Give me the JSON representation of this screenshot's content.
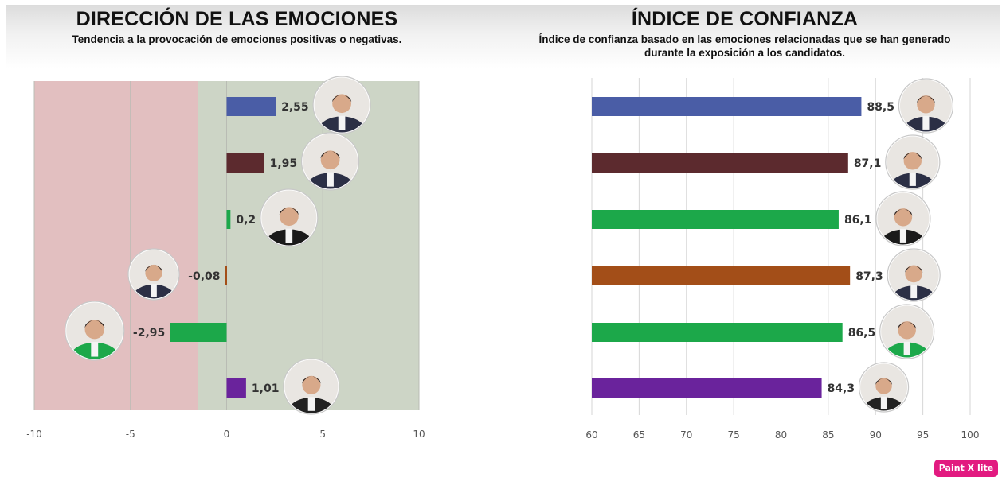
{
  "chart_data": [
    {
      "type": "bar",
      "orientation": "horizontal",
      "title": "DIRECCIÓN DE LAS EMOCIONES",
      "subtitle": "Tendencia a la provocación de emociones positivas o negativas.",
      "xlim": [
        -10,
        10
      ],
      "x_ticks": [
        "-10",
        "-5",
        "0",
        "5",
        "10"
      ],
      "shaded_regions": [
        {
          "from": -10,
          "to": -1.5,
          "color": "#e2bfc0"
        },
        {
          "from": -1.5,
          "to": 10,
          "color": "#cdd5c6"
        }
      ],
      "values": [
        2.55,
        1.95,
        0.2,
        -0.08,
        -2.95,
        1.01
      ],
      "value_labels": [
        "2,55",
        "1,95",
        "0,2",
        "-0,08",
        "-2,95",
        "1,01"
      ],
      "colors": [
        "#4a5da6",
        "#5c2a2e",
        "#1ca84a",
        "#a34e18",
        "#1ca84a",
        "#6a239c"
      ],
      "avatar_icons": [
        "candidate-1-photo-icon",
        "candidate-2-photo-icon",
        "candidate-3-photo-icon",
        "candidate-4-photo-icon",
        "candidate-5-photo-icon",
        "candidate-6-photo-icon"
      ]
    },
    {
      "type": "bar",
      "orientation": "horizontal",
      "title": "ÍNDICE DE CONFIANZA",
      "subtitle_lines": [
        "Índice de confianza basado en las emociones relacionadas que se han generado",
        "durante la exposición a los candidatos."
      ],
      "xlim": [
        60,
        100
      ],
      "x_ticks": [
        "60",
        "65",
        "70",
        "75",
        "80",
        "85",
        "90",
        "95",
        "100"
      ],
      "grid": true,
      "values": [
        88.5,
        87.1,
        86.1,
        87.3,
        86.5,
        84.3
      ],
      "value_labels": [
        "88,5",
        "87,1",
        "86,1",
        "87,3",
        "86,5",
        "84,3"
      ],
      "colors": [
        "#4a5da6",
        "#5c2a2e",
        "#1ca84a",
        "#a34e18",
        "#1ca84a",
        "#6a239c"
      ],
      "avatar_icons": [
        "candidate-1-photo-icon",
        "candidate-2-photo-icon",
        "candidate-3-photo-icon",
        "candidate-4-photo-icon",
        "candidate-5-photo-icon",
        "candidate-6-photo-icon"
      ]
    }
  ],
  "watermark": {
    "label": "Paint X lite",
    "color": "#e21a80"
  }
}
